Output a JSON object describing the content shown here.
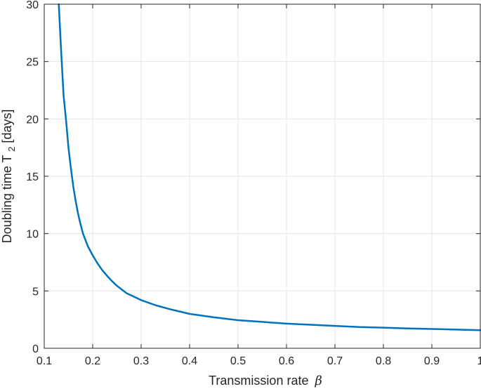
{
  "chart_data": {
    "type": "line",
    "title": "",
    "xlabel": "Transmission rate",
    "xlabel_symbol": "β",
    "ylabel_prefix": "Doubling time T",
    "ylabel_subscript": "2",
    "ylabel_suffix": " [days]",
    "xlim": [
      0.1,
      1.0
    ],
    "ylim": [
      0,
      30
    ],
    "x_ticks": [
      0.1,
      0.2,
      0.3,
      0.4,
      0.5,
      0.6,
      0.7,
      0.8,
      0.9,
      1.0
    ],
    "x_tick_labels": [
      "0.1",
      "0.2",
      "0.3",
      "0.4",
      "0.5",
      "0.6",
      "0.7",
      "0.8",
      "0.9",
      "1"
    ],
    "y_ticks": [
      0,
      5,
      10,
      15,
      20,
      25,
      30
    ],
    "y_tick_labels": [
      "0",
      "5",
      "10",
      "15",
      "20",
      "25",
      "30"
    ],
    "grid": true,
    "series": [
      {
        "color": "#0072bd",
        "x": [
          0.13,
          0.135,
          0.14,
          0.145,
          0.15,
          0.155,
          0.16,
          0.165,
          0.17,
          0.175,
          0.18,
          0.19,
          0.2,
          0.21,
          0.22,
          0.23,
          0.24,
          0.25,
          0.27,
          0.3,
          0.33,
          0.36,
          0.4,
          0.45,
          0.5,
          0.55,
          0.6,
          0.65,
          0.7,
          0.75,
          0.8,
          0.85,
          0.9,
          0.95,
          1.0
        ],
        "y": [
          30.0,
          25.8,
          22.0,
          19.9,
          17.5,
          15.7,
          14.1,
          12.8,
          11.7,
          10.8,
          10.0,
          8.9,
          8.1,
          7.4,
          6.8,
          6.3,
          5.85,
          5.45,
          4.8,
          4.2,
          3.75,
          3.4,
          3.0,
          2.7,
          2.45,
          2.3,
          2.15,
          2.05,
          1.95,
          1.85,
          1.8,
          1.73,
          1.68,
          1.63,
          1.58
        ]
      }
    ]
  }
}
